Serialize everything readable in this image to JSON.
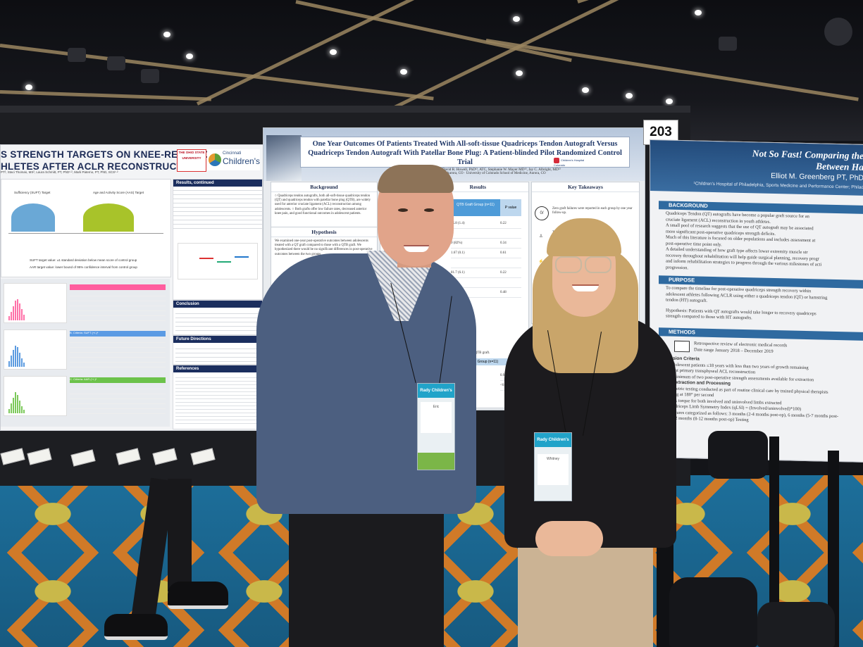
{
  "scene": {
    "board_number": "203"
  },
  "poster_left": {
    "title_line1": "S STRENGTH TARGETS ON KNEE-RELATED",
    "title_line2": "HLETES AFTER ACLR RECONSTRUCTION",
    "authors": "PT², Staci Thomas, MS², Laura Schmitt, PT, PhD¹·², Mark Paterno, PT, PhD, SCS¹·²",
    "logo_osu_line1": "THE OHIO STATE",
    "logo_osu_line2": "UNIVERSITY",
    "logo_cincy_line1": "Cincinnati",
    "logo_cincy_line2": "Children's",
    "results_cont_heading": "Results, continued",
    "conclusion_heading": "Conclusion",
    "future_heading": "Future Directions",
    "references_heading": "References",
    "chart_label_left": "Sufficiency (SUFT) Target",
    "chart_label_right": "Age and Activity Score (AAS) Target",
    "caption_1": "SUFT target value: ±1 standard deviation below mean score of control group",
    "caption_2": "AAR target value: lower bound of 95% confidence interval from control group",
    "criteria_b": "B. Criteria: SUFT (+/-)*",
    "criteria_c": "C. Criteria: AAR (+/-)*"
  },
  "poster_main": {
    "title": "One Year Outcomes Of Patients Treated With All-soft-tissue Quadriceps Tendon Autograft Versus Quadriceps Tendon Autograft With Patellar Bone Plug: A Patient-blinded Pilot Randomized Control Trial",
    "authors": "Whitney L. Hewster BS¹², David R. Howell, PhD¹², ATC, Stephanie W. Mayer MD¹², Jay C. Albright, MD¹²",
    "affiliation": "Children's Hospital Colorado, Aurora, CO  ·  University of Colorado School of Medicine, Aurora, CO",
    "logo_text": "Children's Hospital Colorado",
    "background_heading": "Background",
    "background_text": "○ Quadriceps tendon autografts, both all-soft-tissue quadriceps tendon (QT) and quadriceps tendon with patellar bone plug (QTB), are widely used for anterior cruciate ligament (ACL) reconstruction among adolescents. ○ Both grafts offer low failure rates, decreased anterior knee pain, and good functional outcomes in adolescent patients.",
    "hypothesis_heading": "Hypothesis",
    "hypothesis_text": "We examined one-year post-operative outcomes between adolescents treated with a QT graft compared to those with a QTB graft. We hypothesized there would be no significant differences in post-operative outcomes between the two groups.",
    "results_heading": "Results",
    "table_header_group": "QTB Graft Group (n=11)",
    "table_header_p": "P value",
    "table_values": [
      "15.8 (1.4)",
      "9 (82%)",
      "1.67 (0.1)",
      "81.7 (6.1)",
      "8 (73%)"
    ],
    "table_pvalues": [
      "0.22",
      "0.34",
      "0.61",
      "0.22",
      "0.48"
    ],
    "table2_note": "compared to the QTB graft.",
    "table2_header": "B Group (n=11)",
    "table2_values": [
      "0.94",
      "<0.98",
      "0.22",
      "0.67"
    ],
    "key_takeaways_heading": "Key Takeaways",
    "takeaway_1": "Zero graft failures were reported in each group by one year follow-up.",
    "takeaway_2": "There ... in each group."
  },
  "poster_right": {
    "title_line1": "Not So Fast! Comparing the",
    "title_line2": "Between Ha",
    "author": "Elliot M. Greenberg PT, PhD",
    "affiliation": "¹Children's Hospital of Philadelphia, Sports Medicine and Performance Center; Philad",
    "background_heading": "BACKGROUND",
    "background_items": [
      "Quadriceps Tendon (QT) autografts have become a popular graft source for an",
      "cruciate ligament (ACL) reconstruction in youth athletes.",
      "A small pool of research suggests that the use of QT autograft may be associated",
      "more significant post-operative quadriceps strength deficits.",
      "Much of this literature is focused on older populations and includes assessment at",
      "post-operative time point only.",
      "A detailed understanding of how graft type affects lower extremity muscle str",
      "recovery throughout rehabilitation will help guide surgical planning, recovery progr",
      "and inform rehabilitation strategies to progress through the various milestones of acti",
      "progression."
    ],
    "purpose_heading": "PURPOSE",
    "purpose_items": [
      "To compare the timeline for post-operative quadriceps strength recovery within",
      "adolescent athletes following ACLR using either a quadriceps tendon (QT) or hamstring",
      "tendon (HT) autograft.",
      "Hypothesis: Patients with QT autografts would take longer to recovery quadriceps",
      "strength compared to those with HT autografts."
    ],
    "methods_heading": "METHODS",
    "methods_items": [
      "Retrospective review of electronic medical records",
      "Date range January 2018 – December 2019",
      "sion Criteria",
      "dolescent patients ≤18 years with less than two years of growth remaining",
      "ent primary transphyseal ACL reconstruction",
      "minimum of two post-operative strength assessments available for extraction",
      "Extraction and Processing",
      "metric testing conducted as part of routine clinical care by trained physical therapists",
      "ing at 180° per second",
      "ak torque for both involved and uninvolved limbs extracted",
      "adriceps Limb Symmetry Index (qLSI) = (Involved/uninvolved)*100)",
      "asures categorized as follows: 3 months (2-4 months post-op), 6 months (5-7 months post-",
      "12 months (8-12 months post-op) Testing"
    ]
  },
  "badges": {
    "left_header": "Rady Children's",
    "left_name": "Eric",
    "right_header": "Rady Children's",
    "right_name": "Whitney"
  }
}
